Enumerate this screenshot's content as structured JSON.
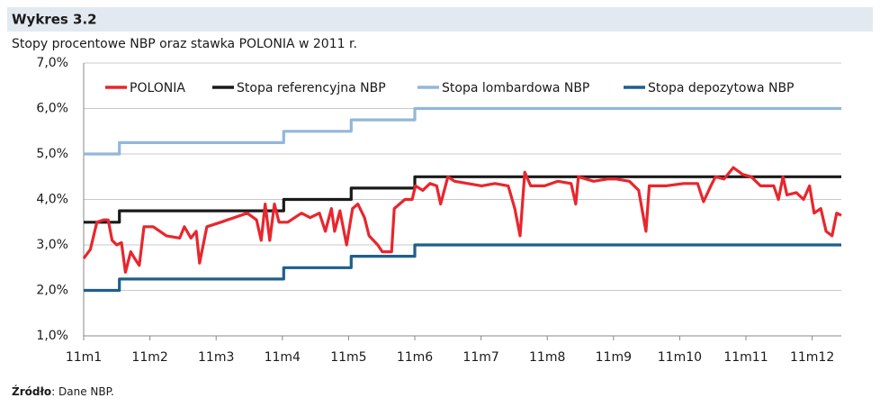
{
  "chart_data": {
    "type": "line",
    "header": "Wykres 3.2",
    "title": "Stopy procentowe NBP oraz stawka POLONIA w 2011 r.",
    "source_label": "Źródło",
    "source_text": ": Dane NBP.",
    "xlim": [
      1,
      12.44
    ],
    "xticks": [
      {
        "value": 1,
        "label": "11m1"
      },
      {
        "value": 2,
        "label": "11m2"
      },
      {
        "value": 3,
        "label": "11m3"
      },
      {
        "value": 4,
        "label": "11m4"
      },
      {
        "value": 5,
        "label": "11m5"
      },
      {
        "value": 6,
        "label": "11m6"
      },
      {
        "value": 7,
        "label": "11m7"
      },
      {
        "value": 8,
        "label": "11m8"
      },
      {
        "value": 9,
        "label": "11m9"
      },
      {
        "value": 10,
        "label": "11m10"
      },
      {
        "value": 11,
        "label": "11m11"
      },
      {
        "value": 12,
        "label": "11m12"
      }
    ],
    "ylim": [
      1,
      7
    ],
    "yticks": [
      {
        "value": 1,
        "label": "1,0%"
      },
      {
        "value": 2,
        "label": "2,0%"
      },
      {
        "value": 3,
        "label": "3,0%"
      },
      {
        "value": 4,
        "label": "4,0%"
      },
      {
        "value": 5,
        "label": "5,0%"
      },
      {
        "value": 6,
        "label": "6,0%"
      },
      {
        "value": 7,
        "label": "7,0%"
      }
    ],
    "grid": true,
    "legend": "top",
    "series": [
      {
        "name": "POLONIA",
        "color": "#e8262d",
        "x": [
          1.0,
          1.1,
          1.2,
          1.3,
          1.37,
          1.43,
          1.5,
          1.57,
          1.63,
          1.71,
          1.77,
          1.84,
          1.91,
          2.05,
          2.25,
          2.45,
          2.52,
          2.62,
          2.7,
          2.75,
          2.86,
          3.07,
          3.27,
          3.47,
          3.61,
          3.68,
          3.74,
          3.81,
          3.88,
          3.95,
          4.08,
          4.29,
          4.42,
          4.56,
          4.65,
          4.74,
          4.79,
          4.87,
          4.97,
          5.06,
          5.14,
          5.24,
          5.31,
          5.44,
          5.51,
          5.65,
          5.69,
          5.85,
          5.96,
          6.01,
          6.12,
          6.23,
          6.33,
          6.39,
          6.5,
          6.6,
          6.8,
          7.01,
          7.21,
          7.41,
          7.51,
          7.59,
          7.66,
          7.75,
          7.96,
          8.16,
          8.36,
          8.43,
          8.47,
          8.7,
          8.91,
          9.04,
          9.24,
          9.38,
          9.49,
          9.54,
          9.79,
          10.06,
          10.27,
          10.36,
          10.47,
          10.54,
          10.67,
          10.81,
          10.95,
          11.08,
          11.22,
          11.42,
          11.49,
          11.56,
          11.62,
          11.76,
          11.87,
          11.96,
          12.03,
          12.13,
          12.21,
          12.3,
          12.37,
          12.44
        ],
        "values": [
          2.7,
          2.9,
          3.5,
          3.55,
          3.55,
          3.1,
          3.0,
          3.05,
          2.4,
          2.85,
          2.7,
          2.55,
          3.4,
          3.4,
          3.2,
          3.15,
          3.4,
          3.15,
          3.3,
          2.6,
          3.4,
          3.5,
          3.6,
          3.7,
          3.55,
          3.1,
          3.9,
          3.1,
          3.9,
          3.5,
          3.5,
          3.7,
          3.6,
          3.7,
          3.3,
          3.8,
          3.3,
          3.75,
          3.0,
          3.8,
          3.9,
          3.6,
          3.2,
          3.0,
          2.85,
          2.85,
          3.8,
          4.0,
          4.0,
          4.3,
          4.2,
          4.35,
          4.3,
          3.9,
          4.5,
          4.4,
          4.35,
          4.3,
          4.35,
          4.3,
          3.8,
          3.2,
          4.6,
          4.3,
          4.3,
          4.4,
          4.35,
          3.9,
          4.5,
          4.4,
          4.45,
          4.45,
          4.4,
          4.2,
          3.3,
          4.3,
          4.3,
          4.35,
          4.35,
          3.95,
          4.3,
          4.5,
          4.45,
          4.7,
          4.55,
          4.5,
          4.3,
          4.3,
          4.0,
          4.5,
          4.1,
          4.15,
          4.0,
          4.3,
          3.7,
          3.8,
          3.3,
          3.2,
          3.7,
          3.65
        ]
      },
      {
        "name": "Stopa referencyjna NBP",
        "color": "#1a1a1a",
        "x": [
          1,
          1.54,
          1.54,
          4.02,
          4.02,
          5.04,
          5.04,
          6.0,
          6.0,
          12.44
        ],
        "values": [
          3.5,
          3.5,
          3.75,
          3.75,
          4,
          4,
          4.25,
          4.25,
          4.5,
          4.5
        ]
      },
      {
        "name": "Stopa lombardowa NBP",
        "color": "#93b7d9",
        "x": [
          1,
          1.54,
          1.54,
          4.02,
          4.02,
          5.04,
          5.04,
          6.0,
          6.0,
          12.44
        ],
        "values": [
          5,
          5,
          5.25,
          5.25,
          5.5,
          5.5,
          5.75,
          5.75,
          6,
          6
        ]
      },
      {
        "name": "Stopa depozytowa NBP",
        "color": "#1f5f8b",
        "x": [
          1,
          1.54,
          1.54,
          4.02,
          4.02,
          5.04,
          5.04,
          6.0,
          6.0,
          12.44
        ],
        "values": [
          2,
          2,
          2.25,
          2.25,
          2.5,
          2.5,
          2.75,
          2.75,
          3,
          3
        ]
      }
    ]
  }
}
